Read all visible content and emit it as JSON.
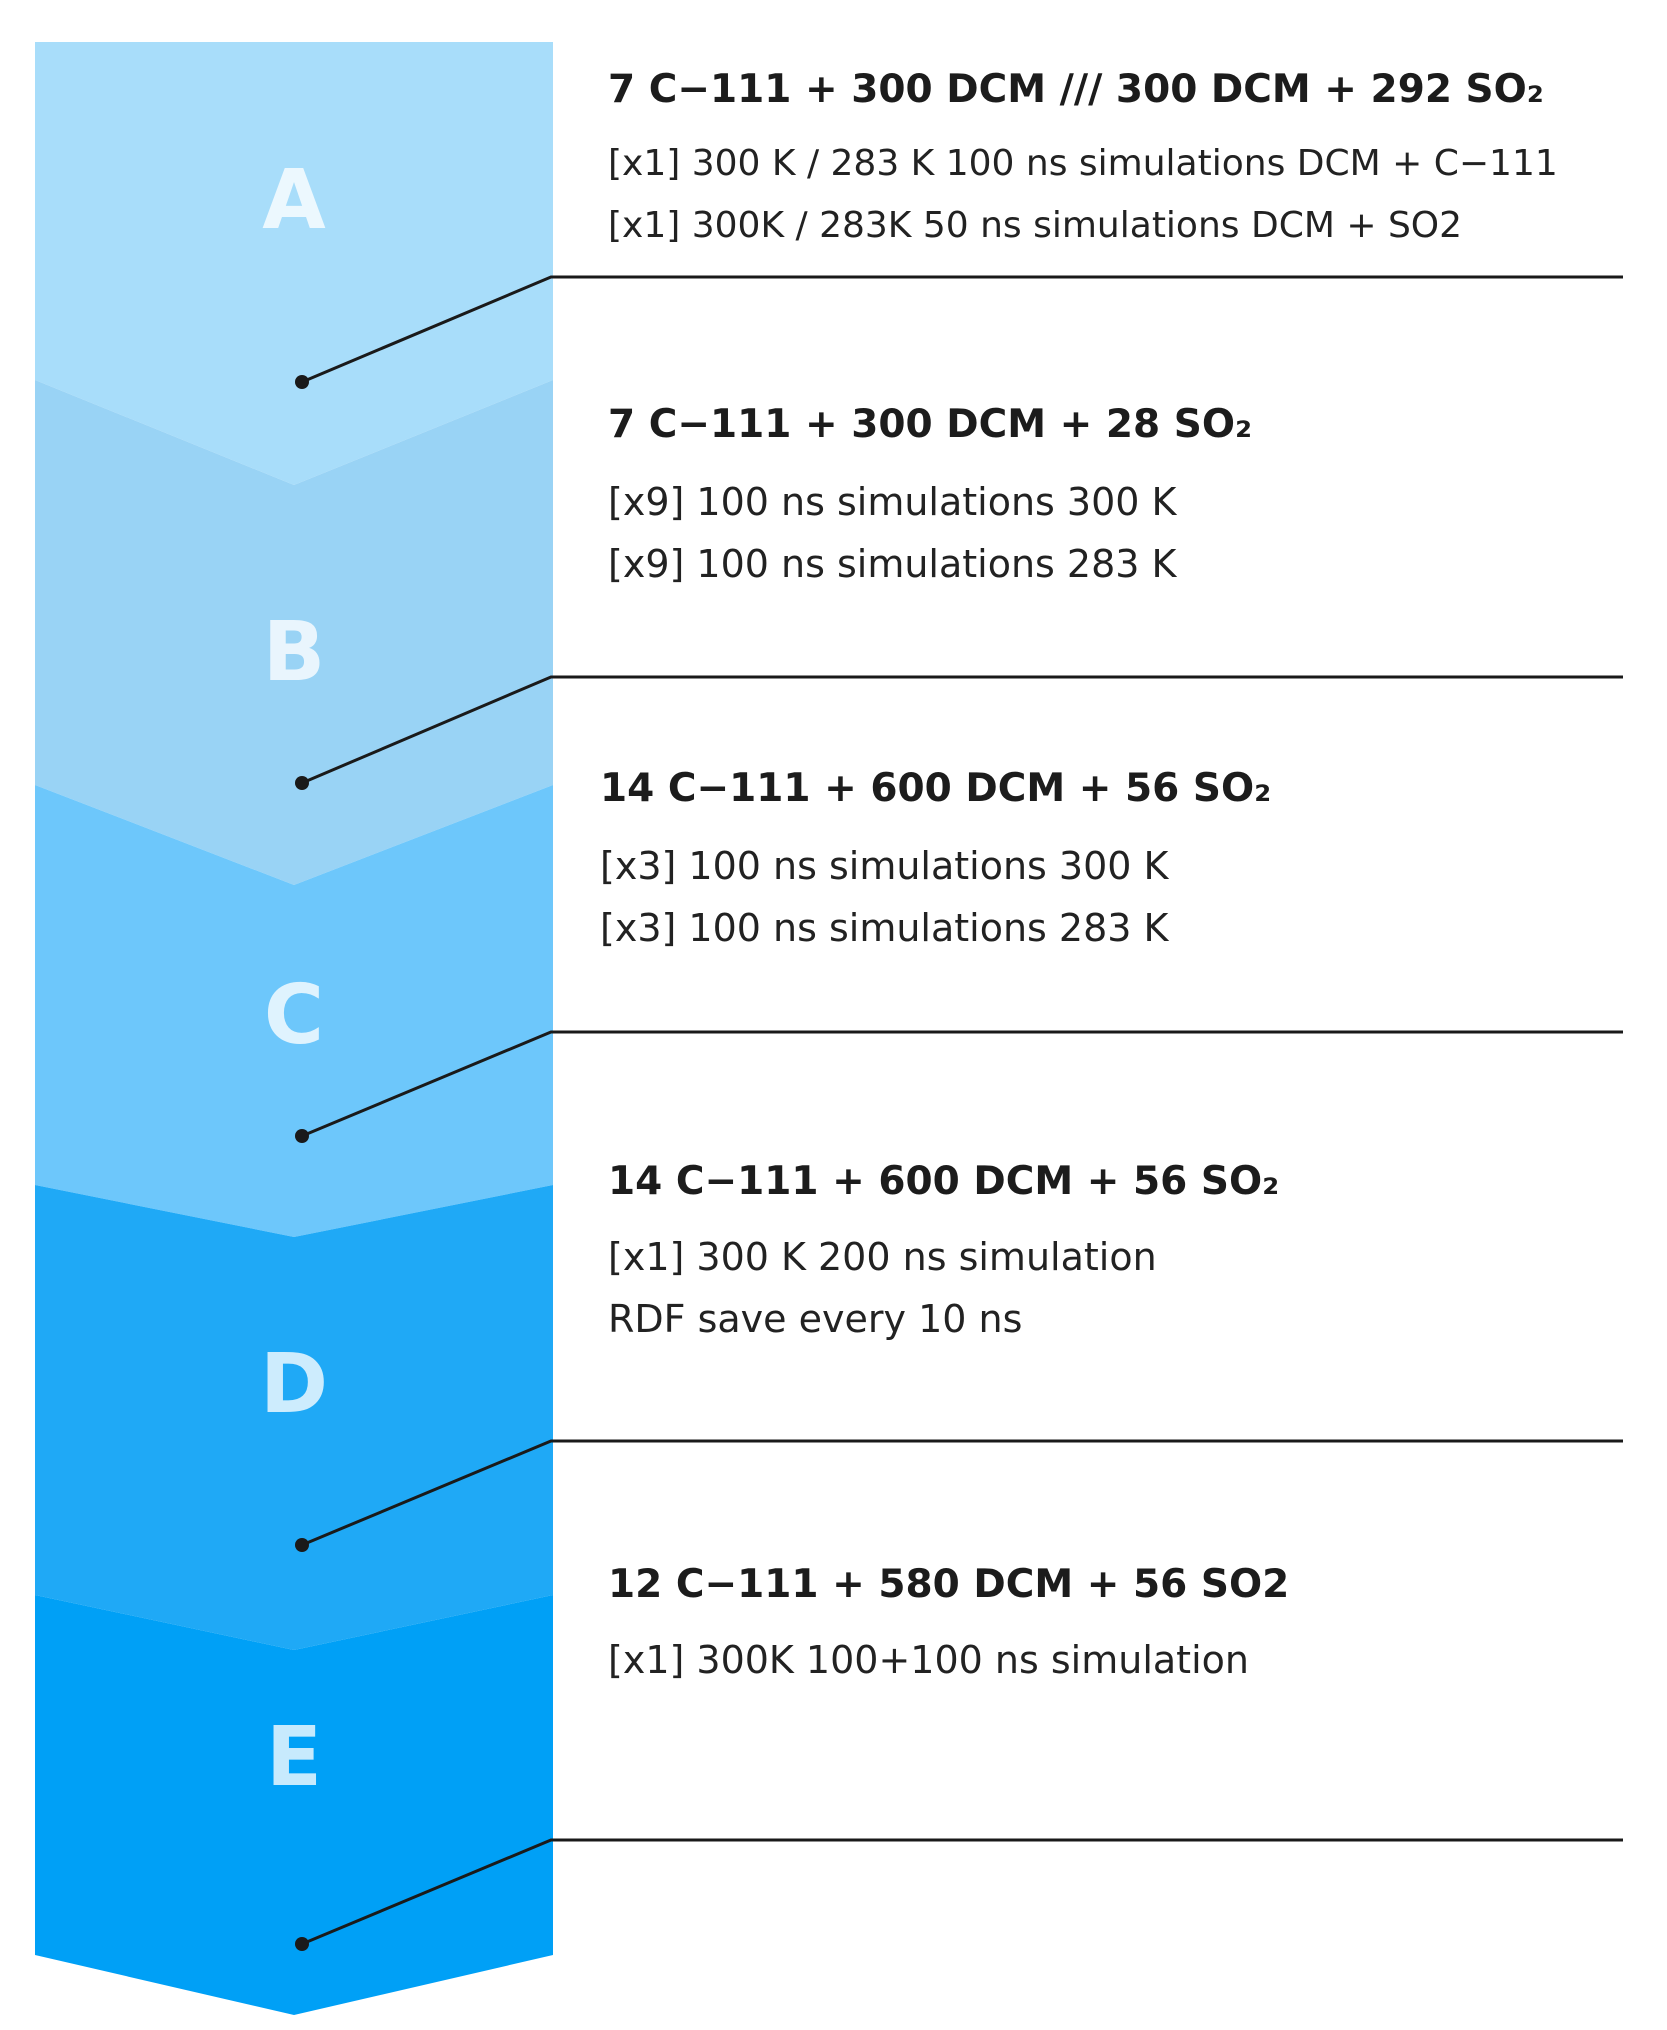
{
  "colors": {
    "stage_a": "#a8ddfa",
    "stage_b": "#99d3f5",
    "stage_c": "#6dc7fb",
    "stage_d": "#1fa9f6",
    "stage_e": "#00a0f6",
    "line": "#1a1a1a",
    "letter": "#ffffff"
  },
  "stages": [
    {
      "letter": "A",
      "title": "7 C−111 + 300 DCM /// 300 DCM + 292 SO₂",
      "details": [
        "[x1] 300 K / 283 K 100 ns simulations DCM + C−111",
        "[x1] 300K / 283K 50 ns simulations DCM + SO2"
      ]
    },
    {
      "letter": "B",
      "title": "7 C−111 + 300 DCM + 28 SO₂",
      "details": [
        "[x9] 100 ns simulations 300 K",
        "[x9] 100 ns simulations 283 K"
      ]
    },
    {
      "letter": "C",
      "title": "14 C−111 + 600 DCM + 56 SO₂",
      "details": [
        "[x3] 100 ns simulations 300 K",
        "[x3] 100 ns simulations 283 K"
      ]
    },
    {
      "letter": "D",
      "title": "14 C−111 + 600 DCM + 56 SO₂",
      "details": [
        "[x1] 300 K 200 ns simulation",
        "RDF save every 10 ns"
      ]
    },
    {
      "letter": "E",
      "title": "12 C−111 + 580 DCM + 56 SO2",
      "details": [
        "[x1] 300K 100+100 ns simulation"
      ]
    }
  ]
}
